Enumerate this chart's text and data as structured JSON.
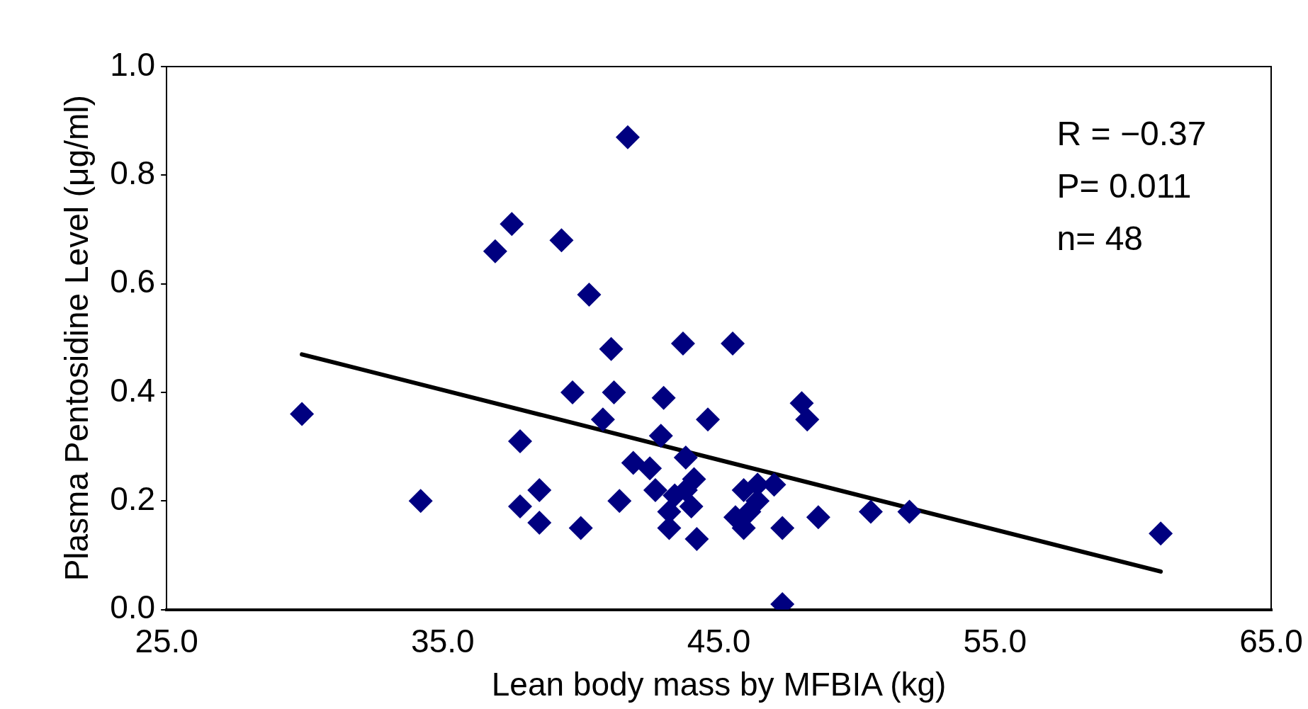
{
  "chart_data": {
    "type": "scatter",
    "xlabel": "Lean body mass by MFBIA (kg)",
    "ylabel": "Plasma Pentosidine Level (μg/ml)",
    "xlim": [
      25,
      65
    ],
    "xticks": [
      {
        "value": 25,
        "label": "25.0"
      },
      {
        "value": 35,
        "label": "35.0"
      },
      {
        "value": 45,
        "label": "45.0"
      },
      {
        "value": 55,
        "label": "55.0"
      },
      {
        "value": 65,
        "label": "65.0"
      }
    ],
    "ylim": [
      0,
      1
    ],
    "yticks": [
      {
        "value": 0,
        "label": "0.0"
      },
      {
        "value": 0.2,
        "label": "0.2"
      },
      {
        "value": 0.4,
        "label": "0.4"
      },
      {
        "value": 0.6,
        "label": "0.6"
      },
      {
        "value": 0.8,
        "label": "0.8"
      },
      {
        "value": 1,
        "label": "1.0"
      }
    ],
    "grid": false,
    "legend": false,
    "marker": "diamond",
    "annotations": [
      "R = −0.37",
      "P= 0.011",
      "n= 48"
    ],
    "series": [
      {
        "color": "#000080",
        "x": [
          29.9,
          34.2,
          36.9,
          37.5,
          37.8,
          37.8,
          38.5,
          38.5,
          39.3,
          39.7,
          40.0,
          40.3,
          40.8,
          41.1,
          41.2,
          41.4,
          41.7,
          41.9,
          42.5,
          42.7,
          42.9,
          43.0,
          43.2,
          43.2,
          43.7,
          43.8,
          43.8,
          44.0,
          44.1,
          44.2,
          44.6,
          45.5,
          45.6,
          45.9,
          46.1,
          46.4,
          46.4,
          47.0,
          47.3,
          47.3,
          48.0,
          48.2,
          48.6,
          50.5,
          51.9,
          61.0,
          43.4,
          45.9
        ],
        "values": [
          0.36,
          0.2,
          0.66,
          0.71,
          0.31,
          0.19,
          0.22,
          0.16,
          0.68,
          0.4,
          0.15,
          0.58,
          0.35,
          0.48,
          0.4,
          0.2,
          0.87,
          0.27,
          0.26,
          0.22,
          0.32,
          0.39,
          0.18,
          0.15,
          0.49,
          0.28,
          0.22,
          0.19,
          0.24,
          0.13,
          0.35,
          0.49,
          0.17,
          0.15,
          0.18,
          0.23,
          0.2,
          0.23,
          0.15,
          0.01,
          0.38,
          0.35,
          0.17,
          0.18,
          0.18,
          0.14,
          0.21,
          0.22
        ]
      },
      {
        "type": "line",
        "color": "#000000",
        "marker": "none",
        "x": [
          29.9,
          61.0
        ],
        "values": [
          0.47,
          0.07
        ]
      }
    ]
  }
}
